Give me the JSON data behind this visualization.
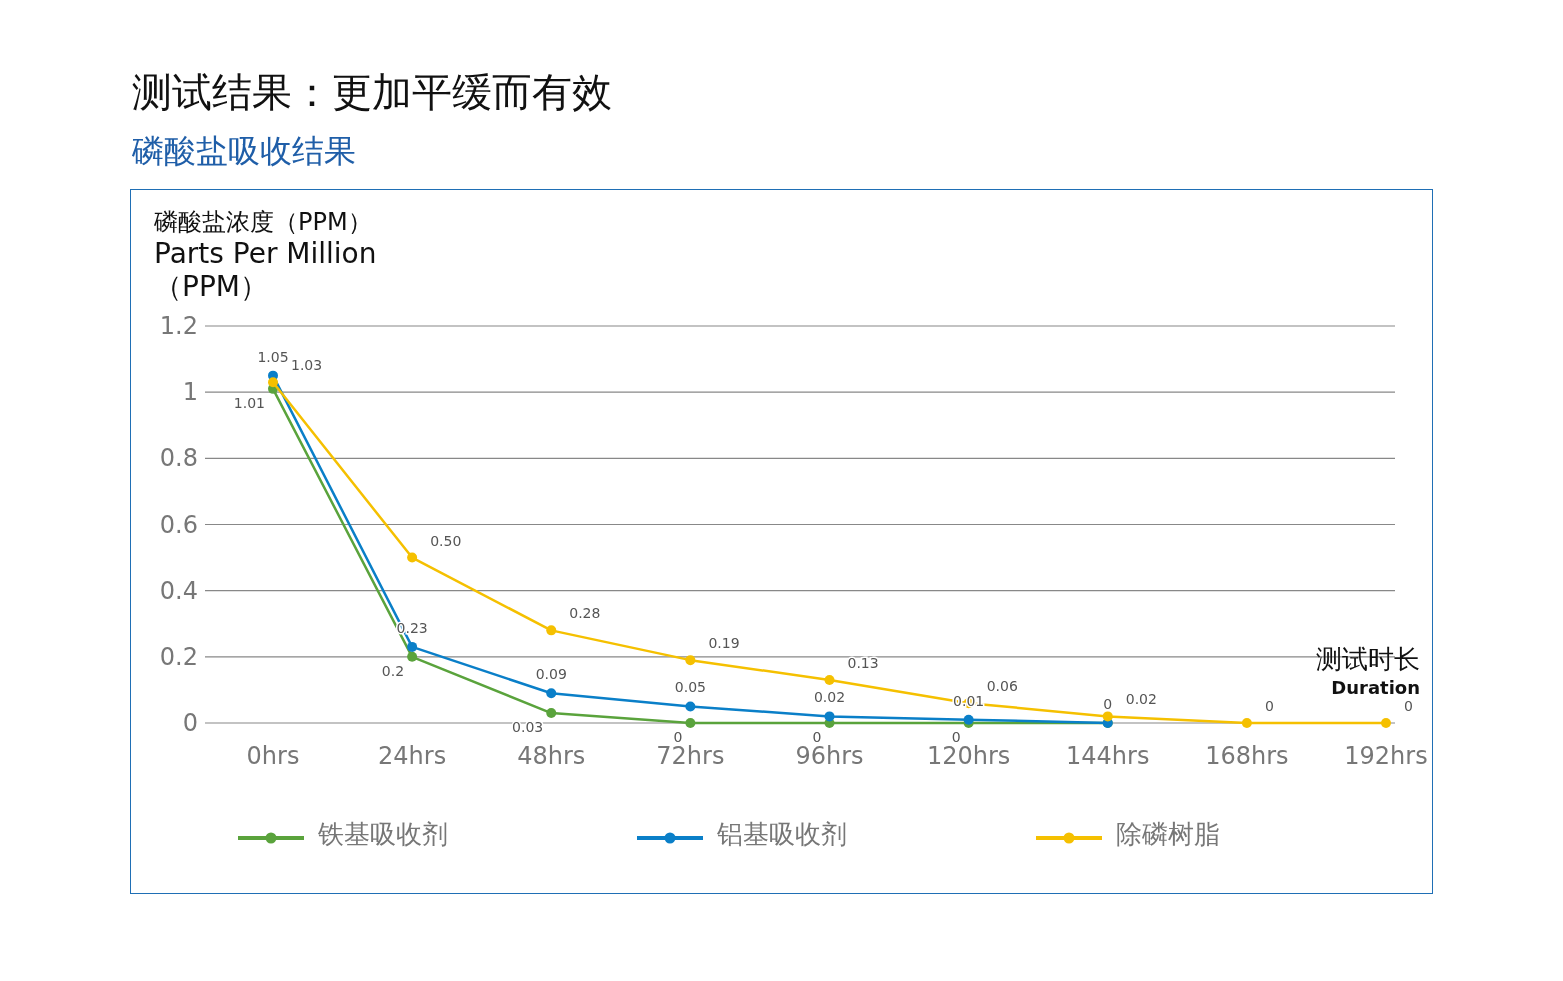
{
  "chart_data": {
    "type": "line",
    "title": "测试结果：更加平缓而有效",
    "subtitle": "磷酸盐吸收结果",
    "ylabel": "磷酸盐浓度（PPM）\nParts Per Million\n（PPM）",
    "xlabel": "测试时长\nDuration",
    "categories": [
      "0hrs",
      "24hrs",
      "48hrs",
      "72hrs",
      "96hrs",
      "120hrs",
      "144hrs",
      "168hrs",
      "192hrs"
    ],
    "series": [
      {
        "name": "铁基吸收剂",
        "color": "#5aa33c",
        "values": [
          1.01,
          0.2,
          0.03,
          0,
          0,
          0,
          0,
          null,
          null
        ],
        "value_labels": [
          "1.01",
          "0.2",
          "0.03",
          "0",
          "0",
          "0",
          null,
          null,
          null
        ]
      },
      {
        "name": "铝基吸收剂",
        "color": "#0a7fc8",
        "values": [
          1.05,
          0.23,
          0.09,
          0.05,
          0.02,
          0.01,
          0,
          null,
          null
        ],
        "value_labels": [
          "1.05",
          "0.23",
          "0.09",
          "0.05",
          "0.02",
          "0.01",
          "0",
          null,
          null
        ]
      },
      {
        "name": "除磷树脂",
        "color": "#f5c000",
        "values": [
          1.03,
          0.5,
          0.28,
          0.19,
          0.13,
          0.06,
          0.02,
          0,
          0
        ],
        "value_labels": [
          "1.03",
          "0.50",
          "0.28",
          "0.19",
          "0.13",
          "0.06",
          "0.02",
          "0",
          "0"
        ]
      }
    ],
    "ylim": [
      0,
      1.2
    ],
    "yticks": [
      0,
      0.2,
      0.4,
      0.6,
      0.8,
      1,
      1.2
    ],
    "grid": "y",
    "legend": "bottom",
    "marker": "circle",
    "line_style": "solid"
  }
}
